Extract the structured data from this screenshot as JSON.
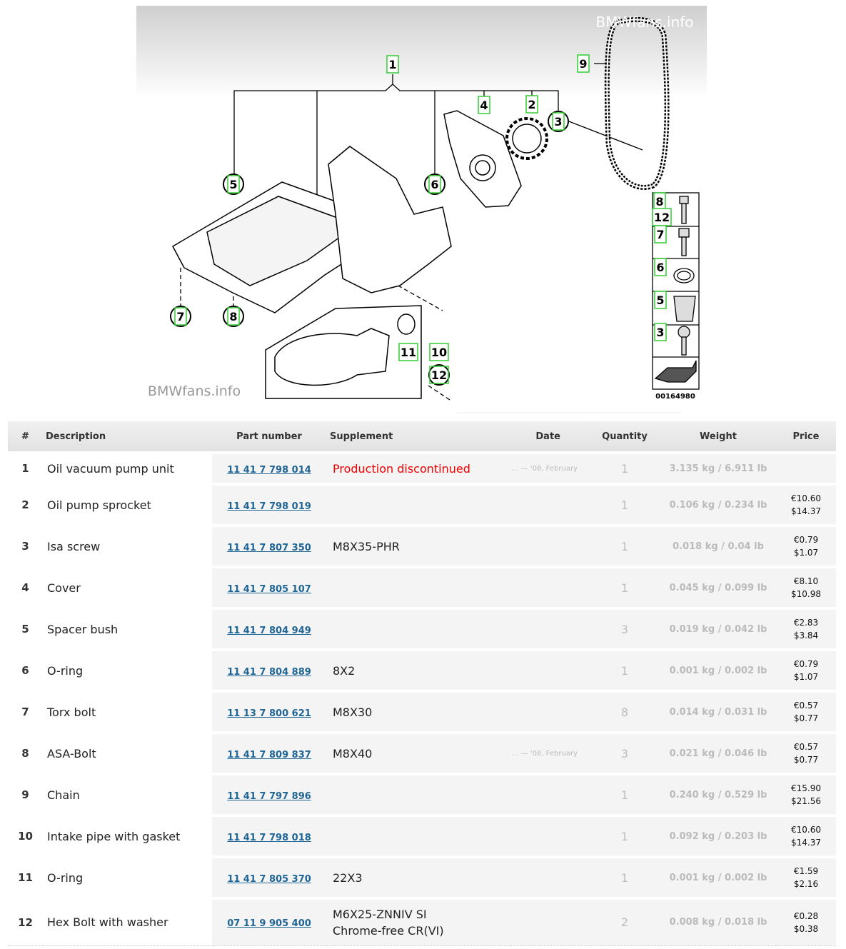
{
  "diagram": {
    "watermarks": [
      "BMWfans.info",
      "BMWfans.info"
    ],
    "callouts": [
      "1",
      "9",
      "4",
      "2",
      "3",
      "5",
      "6",
      "7",
      "8",
      "11",
      "10",
      "12",
      "8",
      "12",
      "7",
      "6",
      "5",
      "3"
    ],
    "drawing_number": "00164980"
  },
  "table": {
    "headers": [
      "#",
      "Description",
      "Part number",
      "Supplement",
      "Date",
      "Quantity",
      "Weight",
      "Price"
    ],
    "rows": [
      {
        "no": 1,
        "description": "Oil vacuum pump unit",
        "part_number": "11 41 7 798 014",
        "notice": "Production discontinued",
        "date": "... — '08, February",
        "quantity": 1,
        "weight": "3.135 kg / 6.911 lb"
      },
      {
        "no": 2,
        "description": "Oil pump sprocket",
        "part_number": "11 41 7 798 019",
        "quantity": 1,
        "weight": "0.106 kg / 0.234 lb",
        "price": [
          "€10.60",
          "$14.37"
        ]
      },
      {
        "no": 3,
        "description": "Isa screw",
        "part_number": "11 41 7 807 350",
        "supplement": [
          "M8X35-PHR"
        ],
        "quantity": 1,
        "weight": "0.018 kg / 0.04 lb",
        "price": [
          "€0.79",
          "$1.07"
        ]
      },
      {
        "no": 4,
        "description": "Cover",
        "part_number": "11 41 7 805 107",
        "quantity": 1,
        "weight": "0.045 kg / 0.099 lb",
        "price": [
          "€8.10",
          "$10.98"
        ]
      },
      {
        "no": 5,
        "description": "Spacer bush",
        "part_number": "11 41 7 804 949",
        "quantity": 3,
        "weight": "0.019 kg / 0.042 lb",
        "price": [
          "€2.83",
          "$3.84"
        ]
      },
      {
        "no": 6,
        "description": "O-ring",
        "part_number": "11 41 7 804 889",
        "supplement": [
          "8X2"
        ],
        "quantity": 1,
        "weight": "0.001 kg / 0.002 lb",
        "price": [
          "€0.79",
          "$1.07"
        ]
      },
      {
        "no": 7,
        "description": "Torx bolt",
        "part_number": "11 13 7 800 621",
        "supplement": [
          "M8X30"
        ],
        "quantity": 8,
        "weight": "0.014 kg / 0.031 lb",
        "price": [
          "€0.57",
          "$0.77"
        ]
      },
      {
        "no": 8,
        "description": "ASA-Bolt",
        "part_number": "11 41 7 809 837",
        "supplement": [
          "M8X40"
        ],
        "date": "... — '08, February",
        "quantity": 3,
        "weight": "0.021 kg / 0.046 lb",
        "price": [
          "€0.57",
          "$0.77"
        ]
      },
      {
        "no": 9,
        "description": "Chain",
        "part_number": "11 41 7 797 896",
        "quantity": 1,
        "weight": "0.240 kg / 0.529 lb",
        "price": [
          "€15.90",
          "$21.56"
        ]
      },
      {
        "no": 10,
        "description": "Intake pipe with gasket",
        "part_number": "11 41 7 798 018",
        "quantity": 1,
        "weight": "0.092 kg / 0.203 lb",
        "price": [
          "€10.60",
          "$14.37"
        ]
      },
      {
        "no": 11,
        "description": "O-ring",
        "part_number": "11 41 7 805 370",
        "supplement": [
          "22X3"
        ],
        "quantity": 1,
        "weight": "0.001 kg / 0.002 lb",
        "price": [
          "€1.59",
          "$2.16"
        ]
      },
      {
        "no": 12,
        "description": "Hex Bolt with washer",
        "part_number": "07 11 9 905 400",
        "supplement": [
          "M6X25-ZNNIV SI",
          "Chrome-free CR(VI)"
        ],
        "quantity": 2,
        "weight": "0.008 kg / 0.018 lb",
        "price": [
          "€0.28",
          "$0.38"
        ]
      }
    ]
  }
}
